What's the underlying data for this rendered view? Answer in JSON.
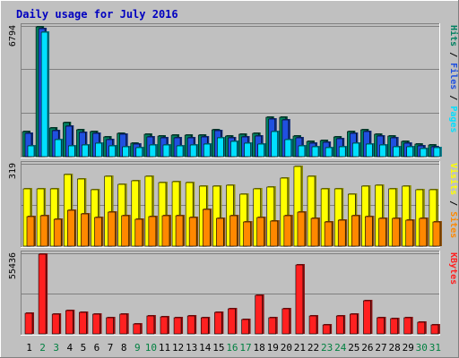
{
  "chart_data": {
    "type": "bar",
    "title": "Daily usage for July 2016",
    "categories": [
      "1",
      "2",
      "3",
      "4",
      "5",
      "6",
      "7",
      "8",
      "9",
      "10",
      "11",
      "12",
      "13",
      "14",
      "15",
      "16",
      "17",
      "18",
      "19",
      "20",
      "21",
      "22",
      "23",
      "24",
      "25",
      "26",
      "27",
      "28",
      "29",
      "30",
      "31"
    ],
    "weekend_days": [
      "2",
      "3",
      "9",
      "10",
      "16",
      "17",
      "23",
      "24",
      "30",
      "31"
    ],
    "panels": [
      {
        "id": "hits",
        "max_label": "6794",
        "ymax": 6794,
        "legend": [
          {
            "label": "Pages",
            "color": "#00e0ff"
          },
          {
            "label": "Files",
            "color": "#2050e0"
          },
          {
            "label": "Hits",
            "color": "#008060"
          }
        ],
        "series": [
          {
            "name": "Hits",
            "color": "#008060",
            "values": [
              1300,
              6800,
              1500,
              1780,
              1400,
              1300,
              1050,
              1200,
              720,
              1150,
              1100,
              1130,
              1130,
              1130,
              1400,
              1100,
              1180,
              1200,
              2050,
              2050,
              1100,
              800,
              850,
              1050,
              1300,
              1400,
              1180,
              1080,
              780,
              650,
              600
            ]
          },
          {
            "name": "Files",
            "color": "#2050e0",
            "values": [
              1200,
              6700,
              1350,
              1600,
              1250,
              1200,
              900,
              1150,
              650,
              1050,
              1000,
              1000,
              1000,
              1050,
              1350,
              1000,
              1050,
              1100,
              1950,
              1900,
              1000,
              700,
              750,
              950,
              1200,
              1300,
              1100,
              1000,
              700,
              550,
              500
            ]
          },
          {
            "name": "Pages",
            "color": "#00e0ff",
            "values": [
              550,
              6500,
              900,
              550,
              600,
              700,
              550,
              500,
              450,
              600,
              600,
              550,
              600,
              650,
              1000,
              800,
              700,
              650,
              1300,
              900,
              550,
              500,
              450,
              500,
              700,
              650,
              600,
              500,
              500,
              400,
              450
            ]
          }
        ]
      },
      {
        "id": "visits",
        "max_label": "319",
        "ymax": 319,
        "legend": [
          {
            "label": "Sites",
            "color": "#ff8800"
          },
          {
            "label": "Visits",
            "color": "#ffff00"
          }
        ],
        "series": [
          {
            "name": "Visits",
            "color": "#ffff00",
            "values": [
              225,
              225,
              225,
              280,
              262,
              222,
              272,
              242,
              256,
              272,
              248,
              252,
              248,
              236,
              236,
              240,
              202,
              225,
              230,
              268,
              312,
              275,
              226,
              225,
              204,
              235,
              240,
              224,
              236,
              222,
              220
            ]
          },
          {
            "name": "Sites",
            "color": "#ff8800",
            "values": [
              116,
              120,
              106,
              140,
              125,
              112,
              134,
              120,
              104,
              117,
              120,
              120,
              113,
              144,
              110,
              118,
              96,
              112,
              99,
              120,
              132,
              108,
              94,
              102,
              118,
              114,
              110,
              109,
              100,
              110,
              94
            ]
          }
        ]
      },
      {
        "id": "kbytes",
        "max_label": "55436",
        "ymax": 55436,
        "legend": [
          {
            "label": "KBytes",
            "color": "#ff2020"
          }
        ],
        "series": [
          {
            "name": "KBytes",
            "color": "#ff2020",
            "values": [
              14500,
              55200,
              13500,
              16500,
              15000,
              13500,
              11000,
              13500,
              7000,
              12500,
              12000,
              11500,
              12500,
              11000,
              15000,
              17500,
              10000,
              26500,
              11000,
              17500,
              48000,
              12500,
              6500,
              12500,
              13500,
              23000,
              11000,
              10500,
              11000,
              8000,
              6000
            ]
          }
        ]
      }
    ]
  }
}
